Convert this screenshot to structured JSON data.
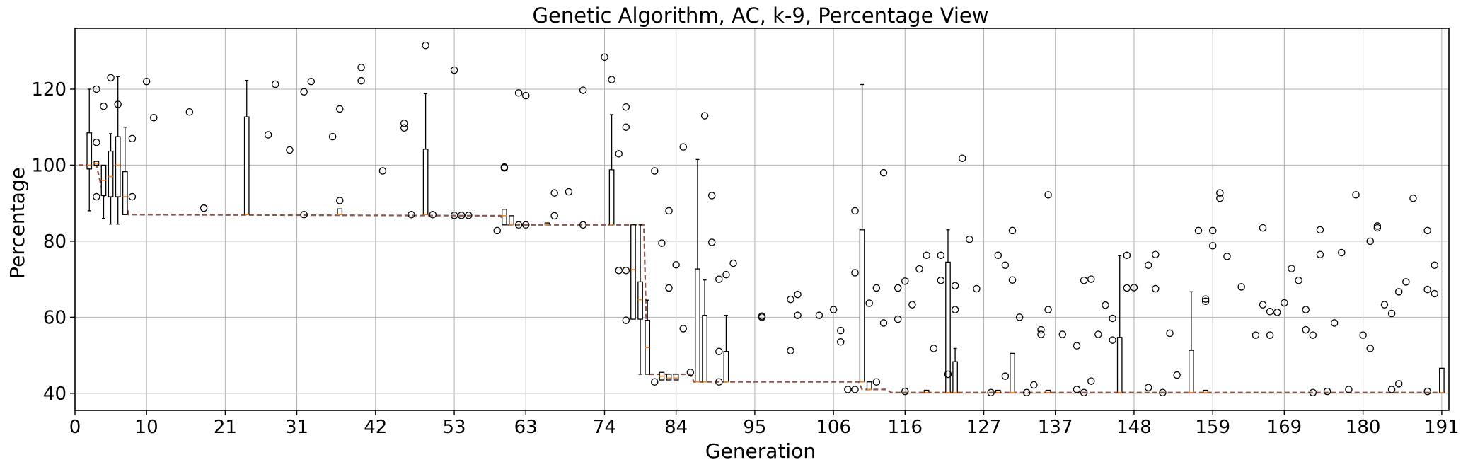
{
  "chart_data": {
    "type": "box",
    "title": "Genetic Algorithm, AC, k-9, Percentage View",
    "xlabel": "Generation",
    "ylabel": "Percentage",
    "xlim": [
      0,
      192
    ],
    "ylim": [
      35.5,
      136
    ],
    "xticks": [
      0,
      10,
      21,
      31,
      42,
      53,
      63,
      74,
      84,
      95,
      106,
      116,
      127,
      137,
      148,
      159,
      169,
      180,
      191
    ],
    "yticks": [
      40,
      60,
      80,
      100,
      120
    ],
    "grid": true,
    "colors": {
      "box": "#000000",
      "median": "#ff7f0e",
      "trend": "#8c564b",
      "grid": "#b0b0b0"
    },
    "trend_line": [
      [
        0.5,
        100
      ],
      [
        1,
        100
      ],
      [
        3,
        100
      ],
      [
        4,
        91.7
      ],
      [
        7,
        91.7
      ],
      [
        7.5,
        87
      ],
      [
        59.5,
        86.7
      ],
      [
        60,
        84.3
      ],
      [
        79.5,
        84.3
      ],
      [
        80,
        45
      ],
      [
        86,
        45
      ],
      [
        86.5,
        43
      ],
      [
        109.5,
        43
      ],
      [
        110,
        41
      ],
      [
        113.5,
        41
      ],
      [
        114,
        40.2
      ],
      [
        191.5,
        40.2
      ]
    ],
    "boxes": [
      {
        "x": 2,
        "q1": 99,
        "med": 100,
        "q3": 108.5,
        "lo": 88,
        "hi": 120
      },
      {
        "x": 3,
        "q1": 100,
        "med": 100.5,
        "q3": 101,
        "lo": 100,
        "hi": 101
      },
      {
        "x": 4,
        "q1": 92,
        "med": 96,
        "q3": 100,
        "lo": 86,
        "hi": 100
      },
      {
        "x": 5,
        "q1": 91.7,
        "med": 97,
        "q3": 103.7,
        "lo": 84.5,
        "hi": 108.3
      },
      {
        "x": 6,
        "q1": 91.7,
        "med": 100,
        "q3": 107.5,
        "lo": 84.5,
        "hi": 123.3
      },
      {
        "x": 7,
        "q1": 87,
        "med": 91.7,
        "q3": 98.3,
        "lo": 87,
        "hi": 110
      },
      {
        "x": 24,
        "q1": 87,
        "med": 87,
        "q3": 112.7,
        "lo": 87,
        "hi": 122.3
      },
      {
        "x": 37,
        "q1": 87,
        "med": 87,
        "q3": 88.5,
        "lo": 87,
        "hi": 88.5
      },
      {
        "x": 49,
        "q1": 87,
        "med": 87,
        "q3": 104.2,
        "lo": 87,
        "hi": 118.8
      },
      {
        "x": 60,
        "q1": 84.3,
        "med": 86.7,
        "q3": 88.4,
        "lo": 84.3,
        "hi": 88.4
      },
      {
        "x": 61,
        "q1": 84.3,
        "med": 84.3,
        "q3": 86.7,
        "lo": 84.3,
        "hi": 86.7
      },
      {
        "x": 66,
        "q1": 84.3,
        "med": 84.3,
        "q3": 84.8,
        "lo": 84.3,
        "hi": 84.8
      },
      {
        "x": 75,
        "q1": 84.3,
        "med": 84.3,
        "q3": 98.8,
        "lo": 84.3,
        "hi": 113.3
      },
      {
        "x": 78,
        "q1": 59.5,
        "med": 72.5,
        "q3": 84.3,
        "lo": 59.5,
        "hi": 84.3
      },
      {
        "x": 79,
        "q1": 59.5,
        "med": 64.6,
        "q3": 69.3,
        "lo": 45,
        "hi": 84.3
      },
      {
        "x": 80,
        "q1": 45,
        "med": 52,
        "q3": 59.2,
        "lo": 45,
        "hi": 64.5
      },
      {
        "x": 82,
        "q1": 43.5,
        "med": 44.5,
        "q3": 45.5,
        "lo": 43.5,
        "hi": 45.5
      },
      {
        "x": 83,
        "q1": 43.5,
        "med": 44,
        "q3": 45,
        "lo": 43.5,
        "hi": 45
      },
      {
        "x": 84,
        "q1": 43.5,
        "med": 44,
        "q3": 45,
        "lo": 43.5,
        "hi": 45
      },
      {
        "x": 87,
        "q1": 43,
        "med": 43,
        "q3": 72.7,
        "lo": 43,
        "hi": 101.5
      },
      {
        "x": 88,
        "q1": 43,
        "med": 43,
        "q3": 60.5,
        "lo": 43,
        "hi": 69.8
      },
      {
        "x": 91,
        "q1": 43,
        "med": 43,
        "q3": 51,
        "lo": 43,
        "hi": 60.5
      },
      {
        "x": 110,
        "q1": 43,
        "med": 43,
        "q3": 83,
        "lo": 43,
        "hi": 121.2
      },
      {
        "x": 111,
        "q1": 41,
        "med": 41,
        "q3": 43,
        "lo": 41,
        "hi": 43
      },
      {
        "x": 119,
        "q1": 40.2,
        "med": 40.2,
        "q3": 40.8,
        "lo": 40.2,
        "hi": 40.8
      },
      {
        "x": 122,
        "q1": 40.2,
        "med": 40.2,
        "q3": 74.5,
        "lo": 40.2,
        "hi": 83
      },
      {
        "x": 123,
        "q1": 40.2,
        "med": 40.2,
        "q3": 48.3,
        "lo": 40.2,
        "hi": 51.8
      },
      {
        "x": 129,
        "q1": 40.2,
        "med": 40.2,
        "q3": 40.8,
        "lo": 40.2,
        "hi": 40.8
      },
      {
        "x": 131,
        "q1": 40.2,
        "med": 40.2,
        "q3": 50.5,
        "lo": 40.2,
        "hi": 50.5
      },
      {
        "x": 136,
        "q1": 40.2,
        "med": 40.2,
        "q3": 40.8,
        "lo": 40.2,
        "hi": 40.8
      },
      {
        "x": 146,
        "q1": 40.2,
        "med": 40.2,
        "q3": 54.7,
        "lo": 40.2,
        "hi": 76.2
      },
      {
        "x": 156,
        "q1": 40.2,
        "med": 40.2,
        "q3": 51.3,
        "lo": 40.2,
        "hi": 66.7
      },
      {
        "x": 158,
        "q1": 40.2,
        "med": 40.2,
        "q3": 40.8,
        "lo": 40.2,
        "hi": 40.8
      },
      {
        "x": 191,
        "q1": 40.2,
        "med": 40.2,
        "q3": 46.6,
        "lo": 40.2,
        "hi": 46.6
      }
    ],
    "outliers": [
      [
        3,
        120
      ],
      [
        3,
        106
      ],
      [
        3,
        91.7
      ],
      [
        4,
        115.5
      ],
      [
        5,
        123
      ],
      [
        6,
        116
      ],
      [
        8,
        107
      ],
      [
        8,
        91.7
      ],
      [
        10,
        122
      ],
      [
        11,
        112.5
      ],
      [
        16,
        114
      ],
      [
        18,
        88.7
      ],
      [
        27,
        108
      ],
      [
        28,
        121.3
      ],
      [
        30,
        104
      ],
      [
        32,
        119.3
      ],
      [
        32,
        87
      ],
      [
        33,
        122
      ],
      [
        36,
        107.5
      ],
      [
        37,
        114.8
      ],
      [
        37,
        90.7
      ],
      [
        40,
        125.7
      ],
      [
        40,
        122.2
      ],
      [
        43,
        98.5
      ],
      [
        46,
        111
      ],
      [
        46,
        109.8
      ],
      [
        47,
        87
      ],
      [
        49,
        131.5
      ],
      [
        50,
        87
      ],
      [
        53,
        125
      ],
      [
        53,
        86.8
      ],
      [
        54,
        86.8
      ],
      [
        55,
        86.8
      ],
      [
        59,
        82.8
      ],
      [
        60,
        99.5
      ],
      [
        60,
        99.3
      ],
      [
        62,
        119
      ],
      [
        62,
        84.3
      ],
      [
        63,
        118.3
      ],
      [
        63,
        84.3
      ],
      [
        67,
        92.7
      ],
      [
        67,
        86.7
      ],
      [
        69,
        93
      ],
      [
        71,
        119.7
      ],
      [
        71,
        84.3
      ],
      [
        74,
        128.4
      ],
      [
        75,
        122.5
      ],
      [
        76,
        103
      ],
      [
        76,
        72.3
      ],
      [
        77,
        115.3
      ],
      [
        77,
        110
      ],
      [
        77,
        72.3
      ],
      [
        77,
        59.2
      ],
      [
        81,
        98.5
      ],
      [
        81,
        43
      ],
      [
        82,
        79.5
      ],
      [
        83,
        88
      ],
      [
        83,
        67.7
      ],
      [
        84,
        73.8
      ],
      [
        85,
        104.8
      ],
      [
        85,
        57
      ],
      [
        86,
        45.5
      ],
      [
        88,
        113
      ],
      [
        89,
        92
      ],
      [
        89,
        79.7
      ],
      [
        90,
        70
      ],
      [
        90,
        51
      ],
      [
        90,
        43
      ],
      [
        91,
        71.2
      ],
      [
        92,
        74.2
      ],
      [
        96,
        60.3
      ],
      [
        96,
        60
      ],
      [
        100,
        64.7
      ],
      [
        100,
        51.2
      ],
      [
        101,
        66
      ],
      [
        101,
        60.5
      ],
      [
        104,
        60.5
      ],
      [
        106,
        62
      ],
      [
        107,
        56.5
      ],
      [
        107,
        53.5
      ],
      [
        108,
        41
      ],
      [
        109,
        88
      ],
      [
        109,
        71.7
      ],
      [
        109,
        41
      ],
      [
        111,
        63.7
      ],
      [
        112,
        43
      ],
      [
        112,
        67.7
      ],
      [
        113,
        98
      ],
      [
        113,
        58.5
      ],
      [
        115,
        67.7
      ],
      [
        115,
        59.5
      ],
      [
        116,
        69.5
      ],
      [
        116,
        40.5
      ],
      [
        117,
        63.3
      ],
      [
        118,
        72.7
      ],
      [
        119,
        76.3
      ],
      [
        120,
        51.8
      ],
      [
        121,
        69.7
      ],
      [
        121,
        76.3
      ],
      [
        122,
        45
      ],
      [
        123,
        62
      ],
      [
        123,
        68.3
      ],
      [
        124,
        101.8
      ],
      [
        125,
        80.5
      ],
      [
        126,
        67.5
      ],
      [
        128,
        40.2
      ],
      [
        129,
        76.3
      ],
      [
        130,
        73.7
      ],
      [
        130,
        44.5
      ],
      [
        131,
        69.8
      ],
      [
        131,
        82.8
      ],
      [
        132,
        60
      ],
      [
        133,
        40.2
      ],
      [
        134,
        42.2
      ],
      [
        135,
        56.7
      ],
      [
        135,
        55.5
      ],
      [
        136,
        62
      ],
      [
        136,
        92.2
      ],
      [
        138,
        55.5
      ],
      [
        140,
        52.5
      ],
      [
        140,
        41
      ],
      [
        141,
        40.2
      ],
      [
        141,
        69.7
      ],
      [
        142,
        70
      ],
      [
        142,
        43.2
      ],
      [
        143,
        55.5
      ],
      [
        144,
        63.2
      ],
      [
        145,
        59.7
      ],
      [
        145,
        54
      ],
      [
        147,
        76.3
      ],
      [
        147,
        67.7
      ],
      [
        148,
        67.8
      ],
      [
        150,
        73.7
      ],
      [
        150,
        41.5
      ],
      [
        151,
        76.5
      ],
      [
        151,
        67.5
      ],
      [
        152,
        40.2
      ],
      [
        153,
        55.8
      ],
      [
        154,
        44.8
      ],
      [
        157,
        82.8
      ],
      [
        158,
        64.2
      ],
      [
        158,
        64.8
      ],
      [
        159,
        82.8
      ],
      [
        159,
        78.8
      ],
      [
        160,
        92.7
      ],
      [
        160,
        91.3
      ],
      [
        161,
        76
      ],
      [
        163,
        68
      ],
      [
        165,
        55.3
      ],
      [
        166,
        83.5
      ],
      [
        166,
        63.3
      ],
      [
        167,
        55.3
      ],
      [
        167,
        61.5
      ],
      [
        168,
        61.3
      ],
      [
        169,
        63.8
      ],
      [
        170,
        72.8
      ],
      [
        171,
        69.7
      ],
      [
        172,
        62
      ],
      [
        172,
        56.7
      ],
      [
        173,
        55.3
      ],
      [
        173,
        40.2
      ],
      [
        174,
        83
      ],
      [
        174,
        76.5
      ],
      [
        175,
        40.5
      ],
      [
        176,
        58.5
      ],
      [
        177,
        77
      ],
      [
        178,
        41
      ],
      [
        179,
        92.2
      ],
      [
        180,
        55.3
      ],
      [
        181,
        80
      ],
      [
        181,
        51.8
      ],
      [
        182,
        83.5
      ],
      [
        182,
        84
      ],
      [
        183,
        63.3
      ],
      [
        184,
        61
      ],
      [
        184,
        41
      ],
      [
        185,
        66.7
      ],
      [
        185,
        42.5
      ],
      [
        186,
        69.3
      ],
      [
        187,
        91.3
      ],
      [
        189,
        82.8
      ],
      [
        189,
        67.3
      ],
      [
        189,
        40.5
      ],
      [
        190,
        73.7
      ],
      [
        190,
        66.2
      ]
    ]
  }
}
